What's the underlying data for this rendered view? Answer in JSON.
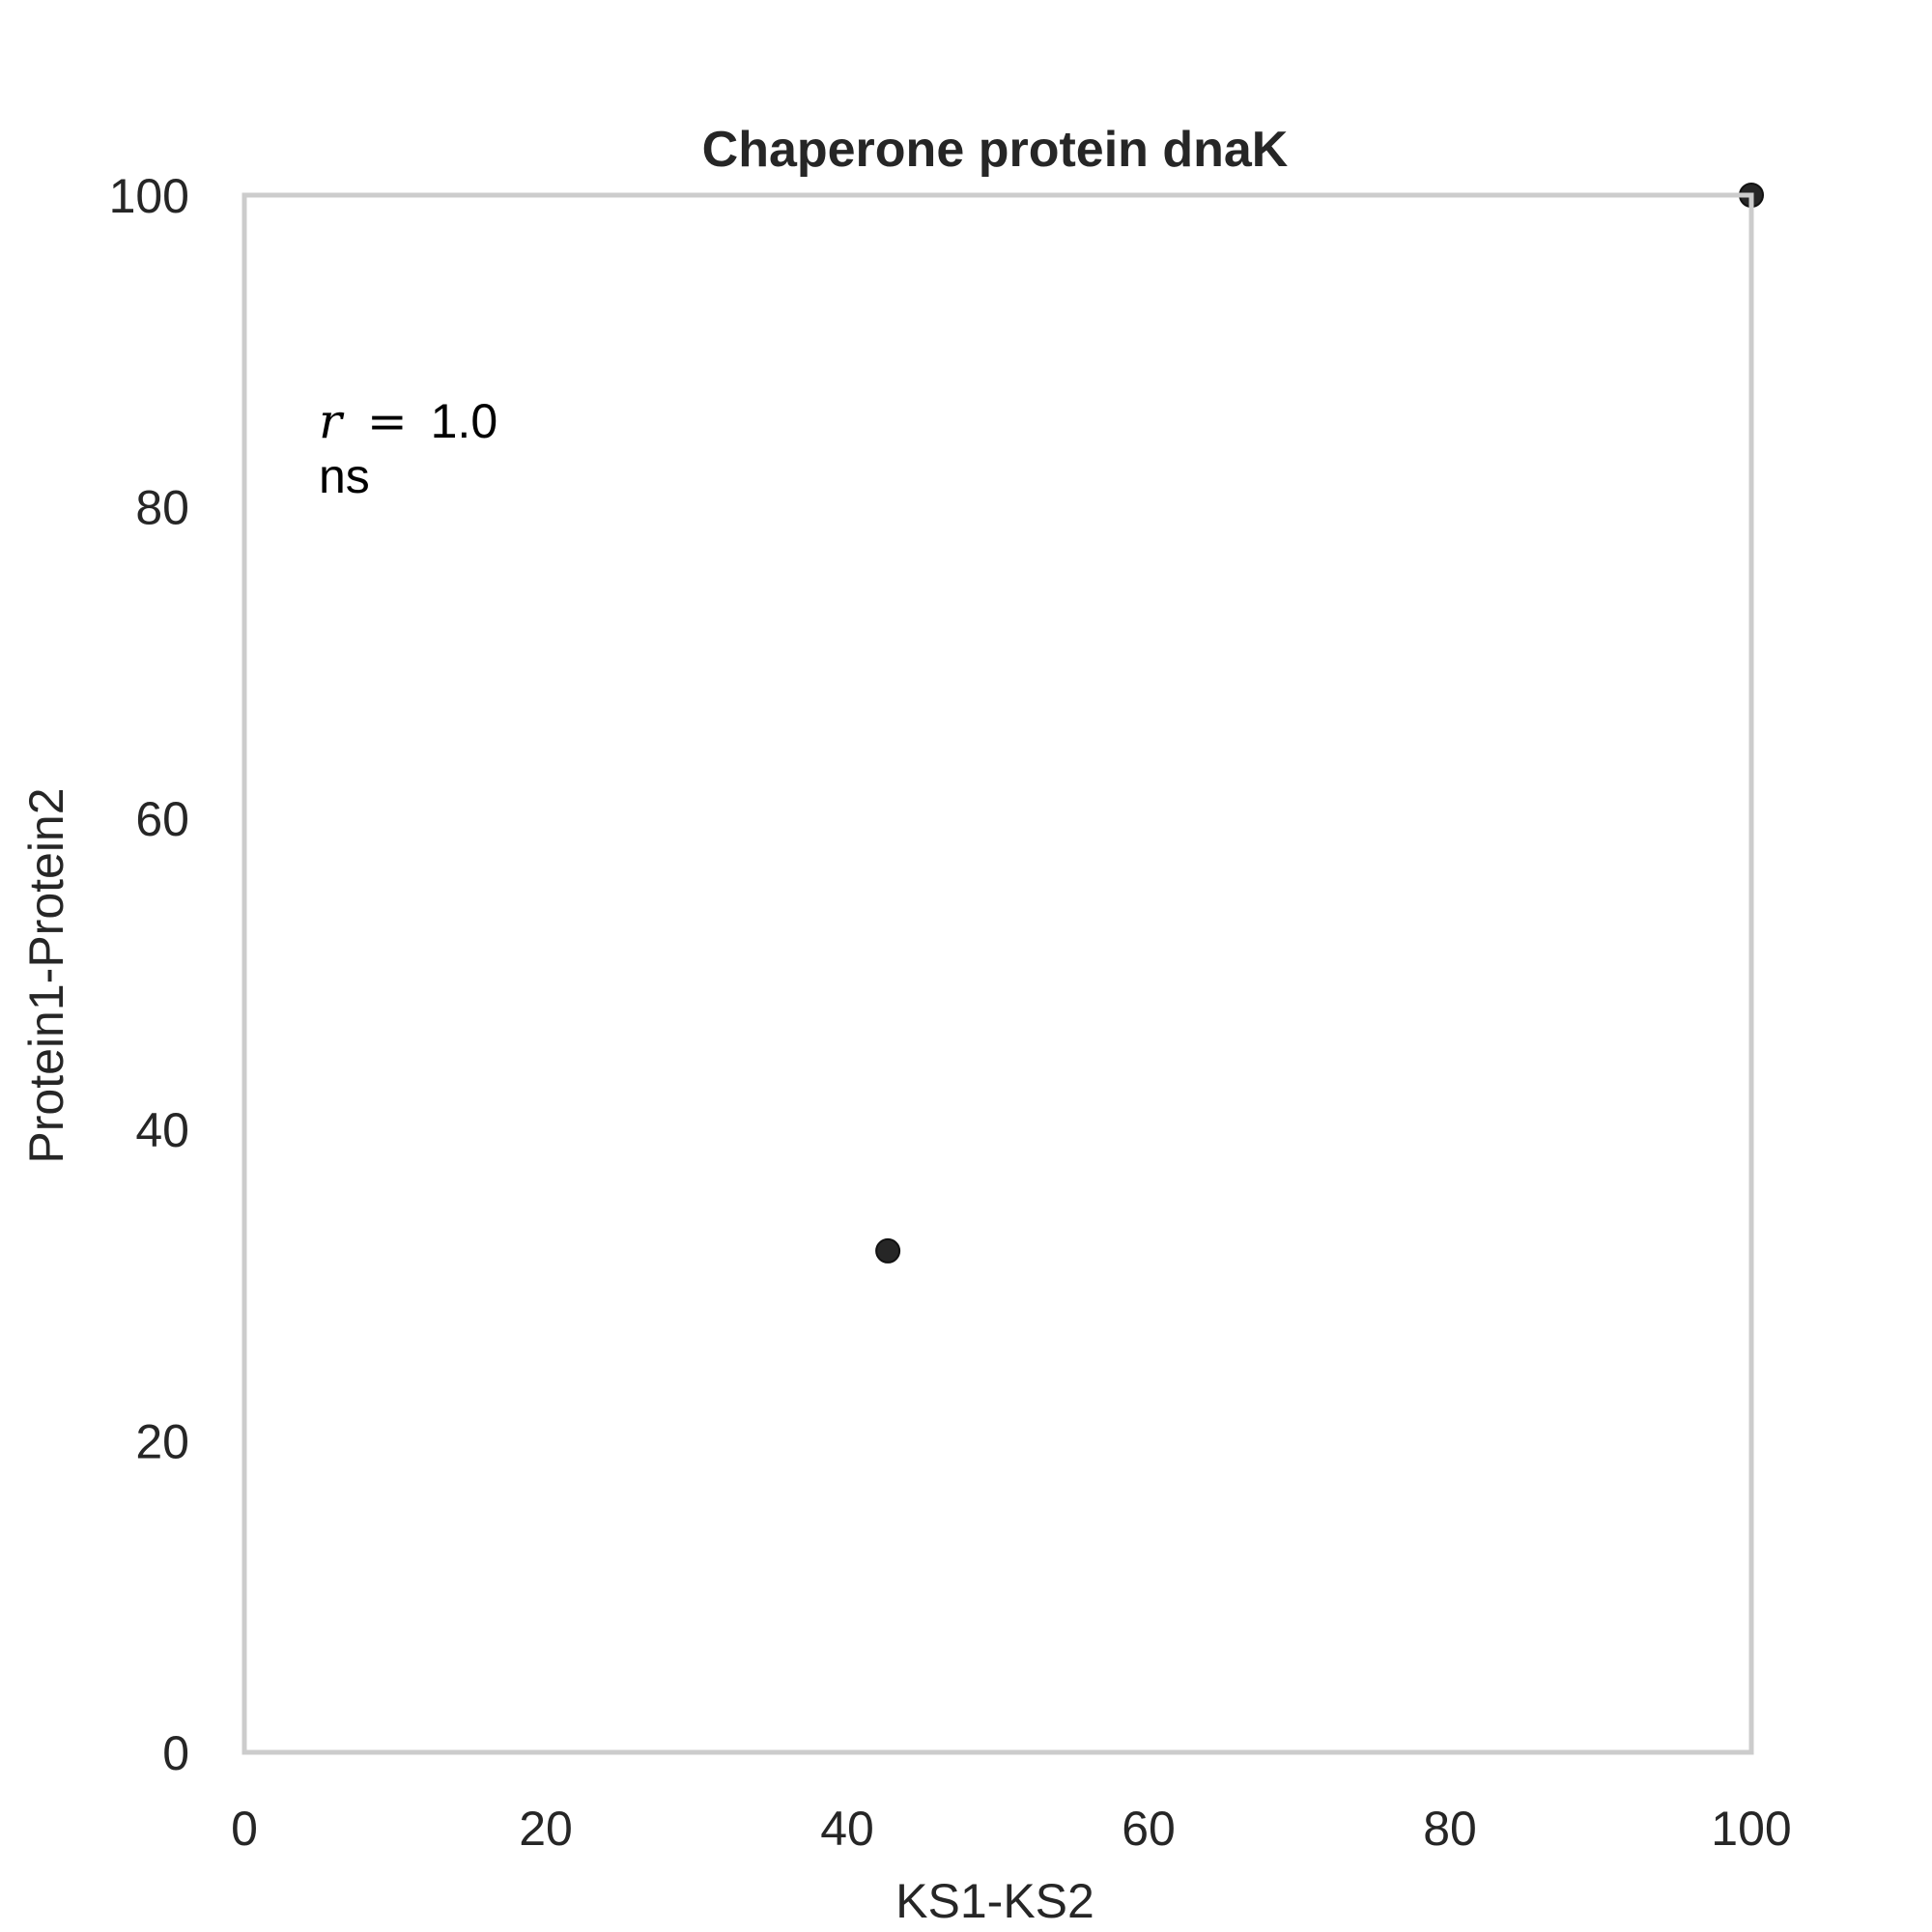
{
  "chart_data": {
    "type": "scatter",
    "title": "Chaperone protein dnaK",
    "xlabel": "KS1-KS2",
    "ylabel": "Protein1-Protein2",
    "xlim": [
      0,
      100
    ],
    "ylim": [
      0,
      100
    ],
    "xticks": [
      "0",
      "20",
      "40",
      "60",
      "80",
      "100"
    ],
    "yticks": [
      "0",
      "20",
      "40",
      "60",
      "80",
      "100"
    ],
    "grid": false,
    "points": [
      {
        "x": 42.7,
        "y": 32.2
      },
      {
        "x": 100,
        "y": 100
      }
    ],
    "annotation": {
      "r_symbol": "r",
      "r_equals": "=",
      "r_value": "1.0",
      "significance": "ns"
    },
    "colors": {
      "point": "#262626",
      "frame": "#cccccc",
      "text": "#262626"
    }
  }
}
